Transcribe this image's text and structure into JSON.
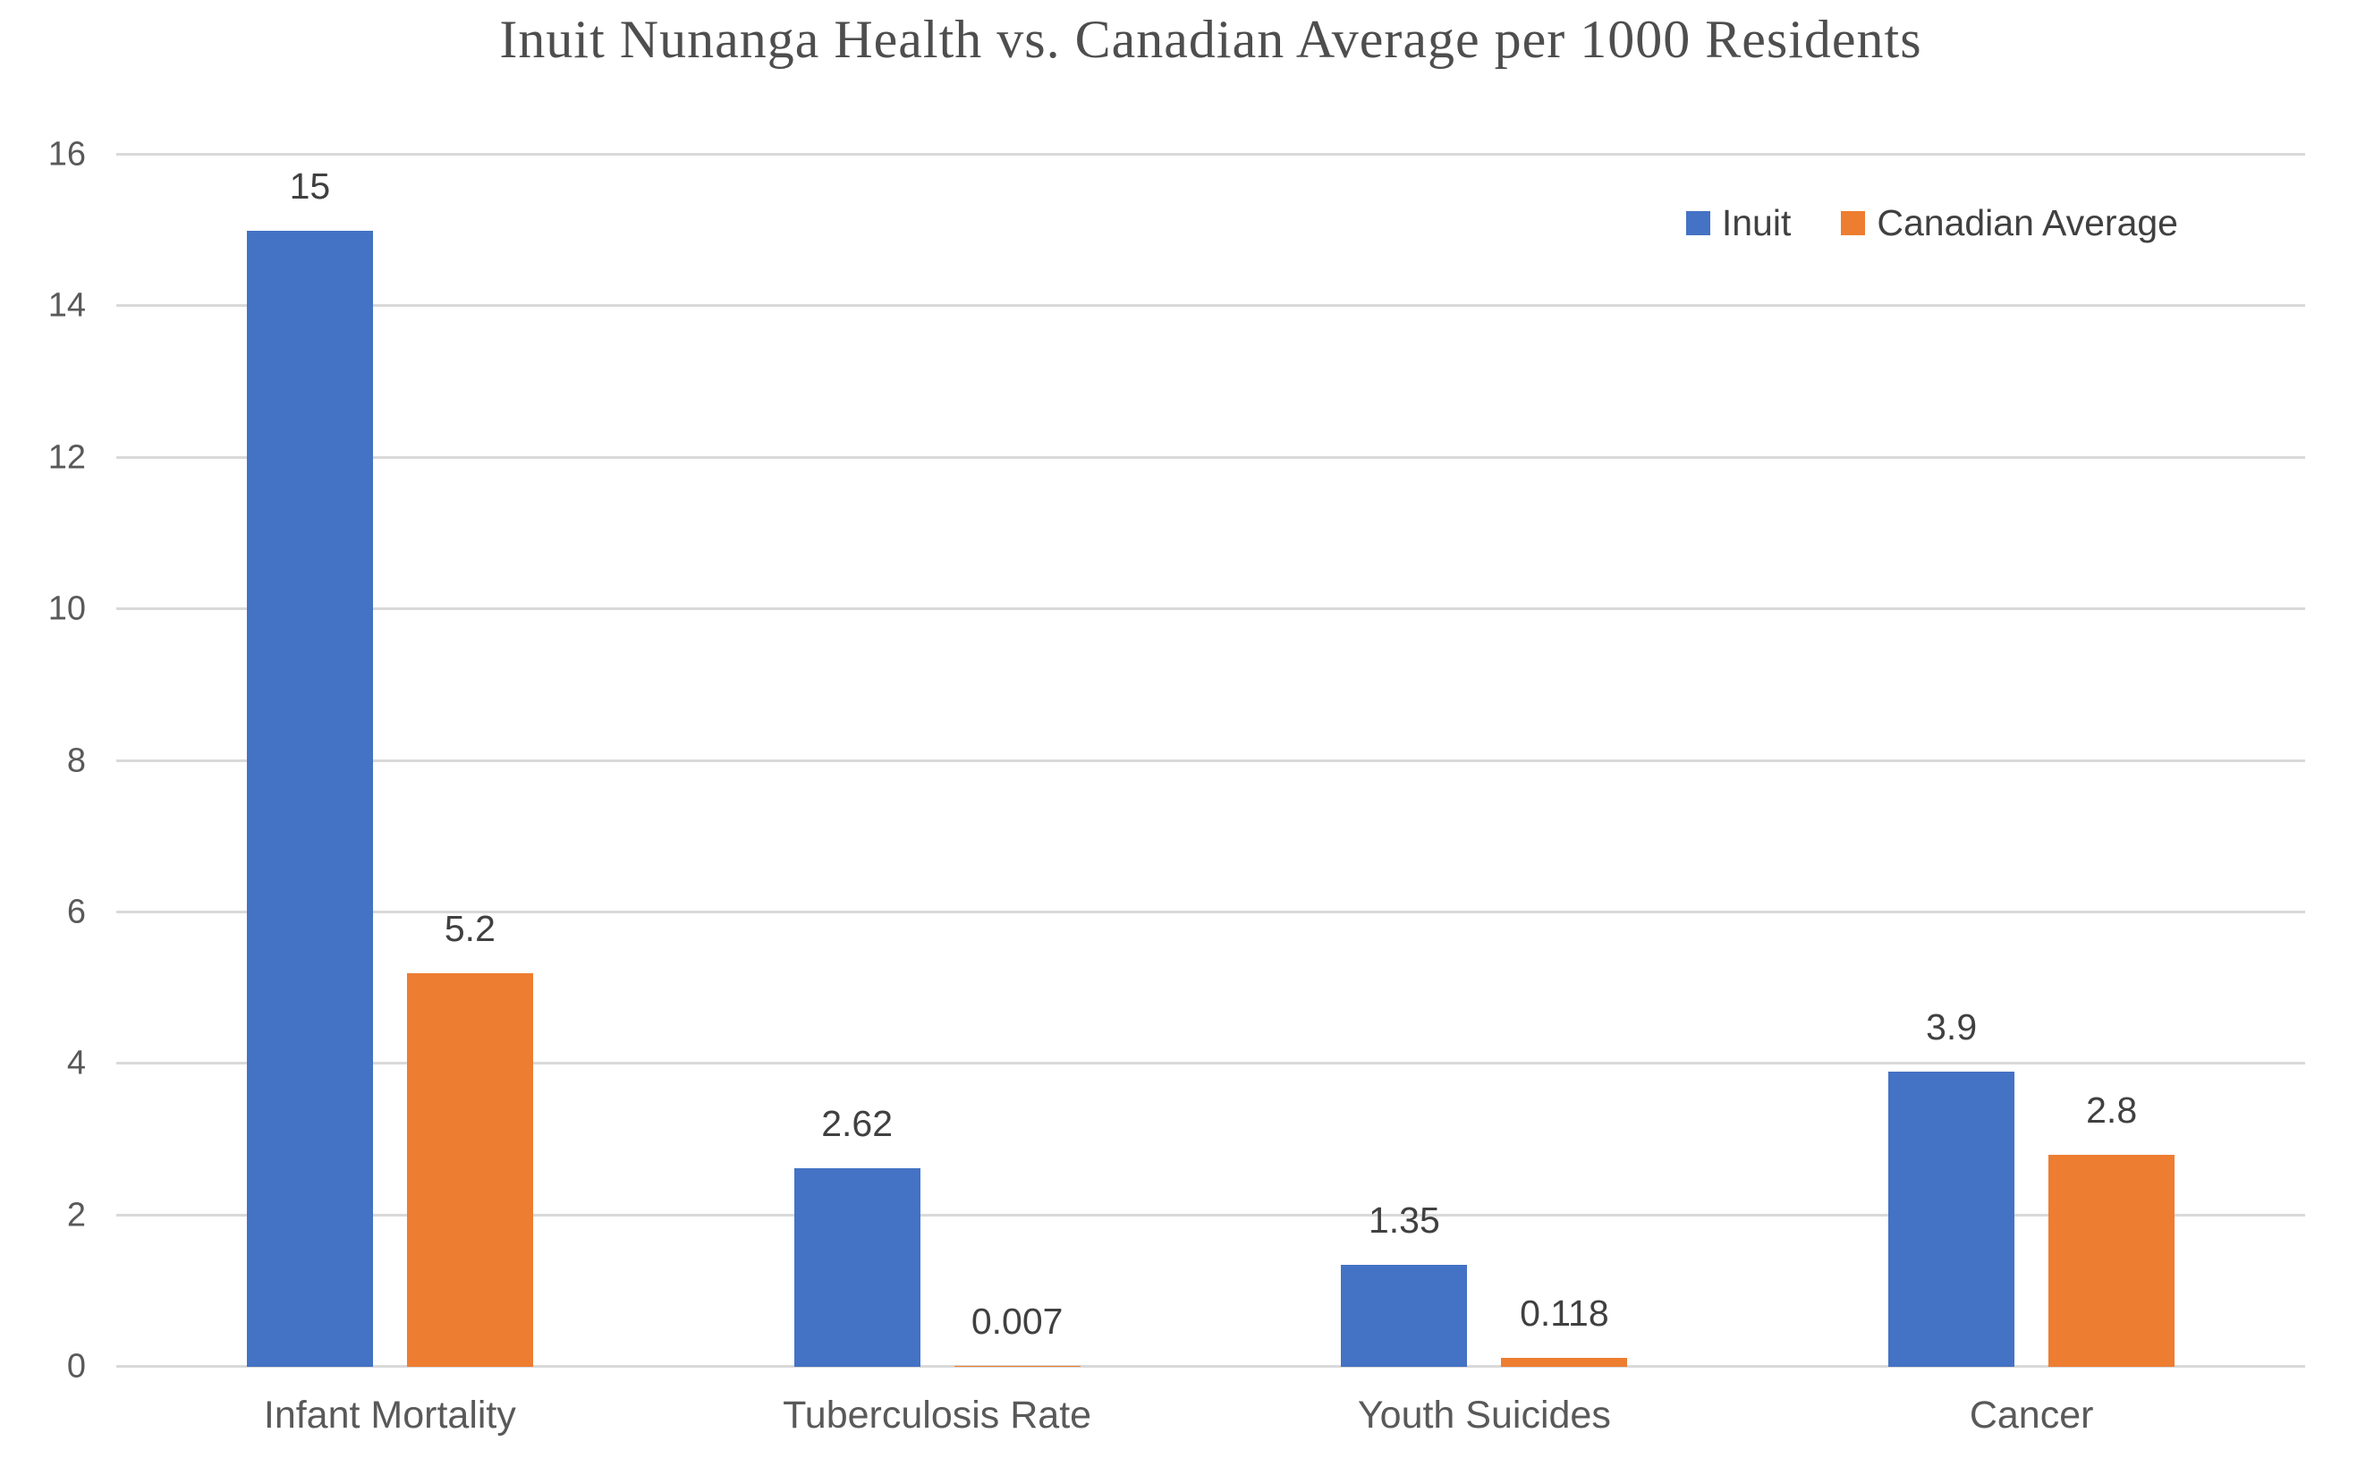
{
  "chart_data": {
    "type": "bar",
    "title": "Inuit Nunanga Health vs. Canadian Average per 1000 Residents",
    "categories": [
      "Infant Mortality",
      "Tuberculosis Rate",
      "Youth Suicides",
      "Cancer"
    ],
    "series": [
      {
        "name": "Inuit",
        "color": "#4472C4",
        "values": [
          15,
          2.62,
          1.35,
          3.9
        ],
        "labels": [
          "15",
          "2.62",
          "1.35",
          "3.9"
        ]
      },
      {
        "name": "Canadian Average",
        "color": "#ED7D31",
        "values": [
          5.2,
          0.007,
          0.118,
          2.8
        ],
        "labels": [
          "5.2",
          "0.007",
          "0.118",
          "2.8"
        ]
      }
    ],
    "y_axis": {
      "min": 0,
      "max": 16,
      "step": 2,
      "tick_labels": [
        "0",
        "2",
        "4",
        "6",
        "8",
        "10",
        "12",
        "14",
        "16"
      ]
    },
    "legend": {
      "position": "top-right",
      "entries": [
        "Inuit",
        "Canadian Average"
      ]
    },
    "grid": true,
    "colors": {
      "background": "#ffffff",
      "gridline": "#d9d9d9",
      "axis_text": "#595959",
      "data_label_text": "#404040",
      "title_text": "#4e4e4e"
    }
  }
}
